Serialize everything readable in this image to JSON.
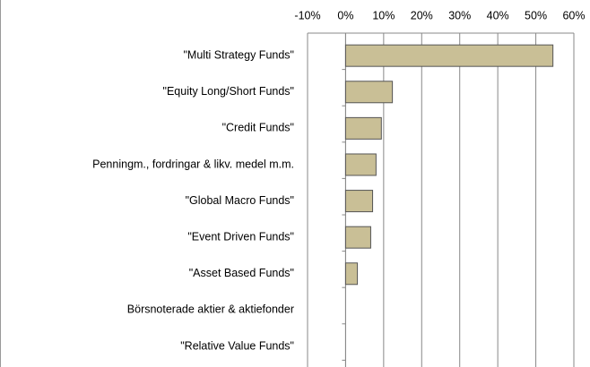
{
  "chart_data": {
    "type": "bar",
    "orientation": "horizontal",
    "categories": [
      "\"Multi Strategy Funds\"",
      "\"Equity Long/Short Funds\"",
      "\"Credit Funds\"",
      "Penningm., fordringar & likv. medel m.m.",
      "\"Global Macro Funds\"",
      "\"Event Driven Funds\"",
      "\"Asset Based Funds\"",
      "Börsnoterade aktier & aktiefonder",
      "\"Relative Value Funds\""
    ],
    "values": [
      54.5,
      12.3,
      9.4,
      8.0,
      7.1,
      6.6,
      3.1,
      0,
      0
    ],
    "color": "#c9bf96",
    "xlim": [
      -10,
      60
    ],
    "xticks": [
      {
        "value": -10,
        "label": "-10%"
      },
      {
        "value": 0,
        "label": "0%"
      },
      {
        "value": 10,
        "label": "10%"
      },
      {
        "value": 20,
        "label": "20%"
      },
      {
        "value": 30,
        "label": "30%"
      },
      {
        "value": 40,
        "label": "40%"
      },
      {
        "value": 50,
        "label": "50%"
      },
      {
        "value": 60,
        "label": "60%"
      }
    ],
    "grid": true
  }
}
